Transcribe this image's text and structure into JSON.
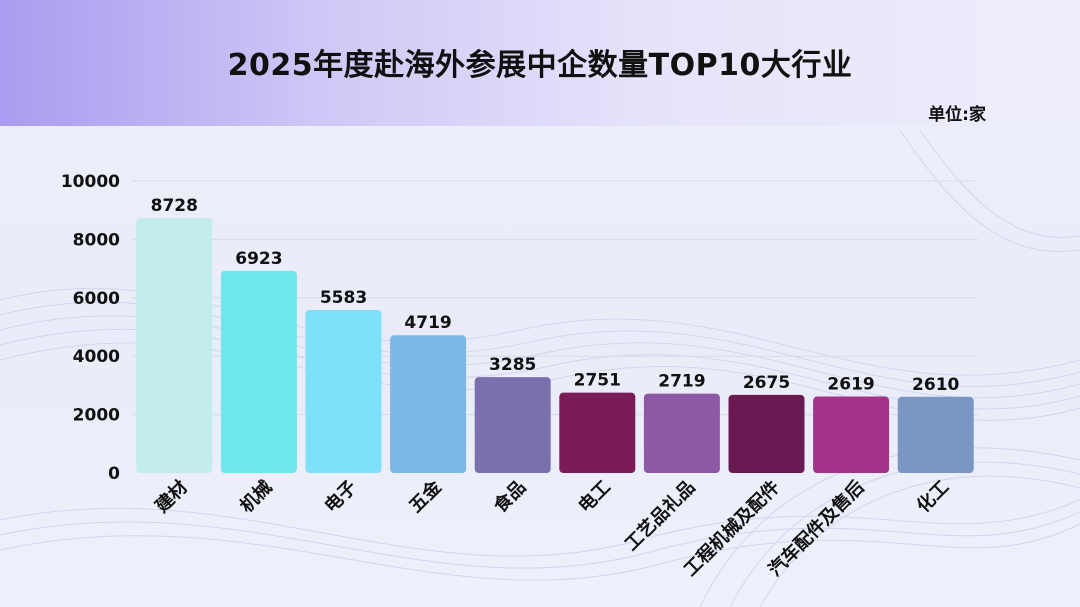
{
  "title": "2025年度赴海外参展中企数量TOP10大行业",
  "unit_label": "单位:家",
  "chart_data": {
    "type": "bar",
    "title": "2025年度赴海外参展中企数量TOP10大行业",
    "xlabel": "",
    "ylabel": "",
    "ylim": [
      0,
      10000
    ],
    "yticks": [
      0,
      2000,
      4000,
      6000,
      8000,
      10000
    ],
    "grid": true,
    "categories": [
      "建材",
      "机械",
      "电子",
      "五金",
      "食品",
      "电工",
      "工艺品礼品",
      "工程机械及配件",
      "汽车配件及售后",
      "化工"
    ],
    "values": [
      8728,
      6923,
      5583,
      4719,
      3285,
      2751,
      2719,
      2675,
      2619,
      2610
    ],
    "colors": [
      "#c3ecec",
      "#6ee6ec",
      "#7ee0fb",
      "#7cb8e6",
      "#7c6fae",
      "#7a1d57",
      "#8e59a4",
      "#6a1a52",
      "#a33389",
      "#7b95c5"
    ]
  }
}
